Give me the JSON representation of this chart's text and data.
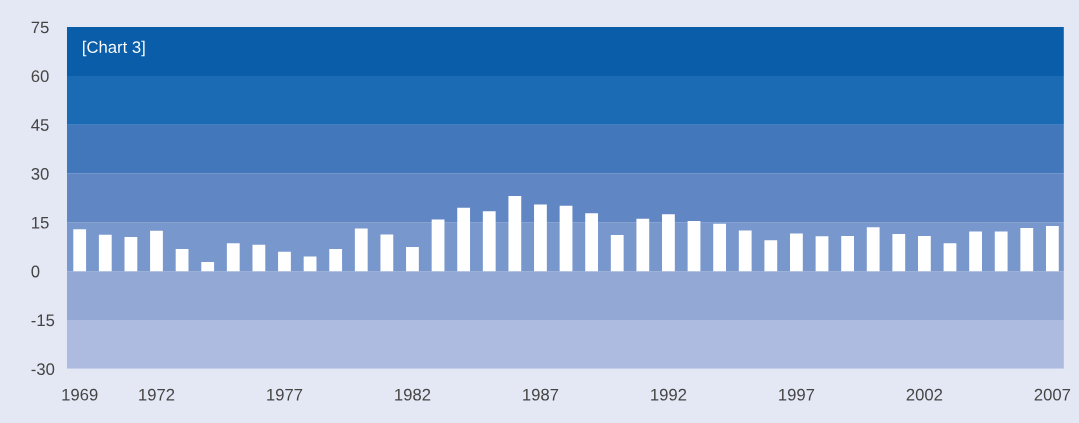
{
  "chart_data": {
    "type": "bar",
    "title": "[Chart 3]",
    "x": [
      1969,
      1970,
      1971,
      1972,
      1973,
      1974,
      1975,
      1976,
      1977,
      1978,
      1979,
      1980,
      1981,
      1982,
      1983,
      1984,
      1985,
      1986,
      1987,
      1988,
      1989,
      1990,
      1991,
      1992,
      1993,
      1994,
      1995,
      1996,
      1997,
      1998,
      1999,
      2000,
      2001,
      2002,
      2003,
      2004,
      2005,
      2006,
      2007
    ],
    "values": [
      12.9,
      11.2,
      10.5,
      12.4,
      6.8,
      2.8,
      8.6,
      8.1,
      6.0,
      4.5,
      6.8,
      13.1,
      11.3,
      7.4,
      15.9,
      19.5,
      18.4,
      23.1,
      20.5,
      20.1,
      17.8,
      11.1,
      16.1,
      17.5,
      15.4,
      14.6,
      12.5,
      9.5,
      11.6,
      10.7,
      10.8,
      13.5,
      11.4,
      10.8,
      8.6,
      12.2,
      12.2,
      13.3,
      13.9
    ],
    "color": "#ffffff",
    "xlim": [
      1968.5,
      2007.45
    ],
    "xticks": [
      1969,
      1972,
      1977,
      1982,
      1987,
      1992,
      1997,
      2002,
      2007
    ],
    "ylim": [
      -30,
      75
    ],
    "yticks": [
      -30,
      -15,
      0,
      15,
      30,
      45,
      60,
      75
    ],
    "bands": [
      {
        "axis": "y",
        "from": -30,
        "to": -15,
        "color": "#aebbe0"
      },
      {
        "axis": "y",
        "from": -15,
        "to": 0,
        "color": "#94a8d6"
      },
      {
        "axis": "y",
        "from": 0,
        "to": 15,
        "color": "#7897cc"
      },
      {
        "axis": "y",
        "from": 15,
        "to": 30,
        "color": "#6086c4"
      },
      {
        "axis": "y",
        "from": 30,
        "to": 45,
        "color": "#4277bb"
      },
      {
        "axis": "y",
        "from": 45,
        "to": 60,
        "color": "#1a6ab4"
      },
      {
        "axis": "y",
        "from": 60,
        "to": 75,
        "color": "#0a5ea9"
      }
    ],
    "grid": false,
    "legend": false
  }
}
